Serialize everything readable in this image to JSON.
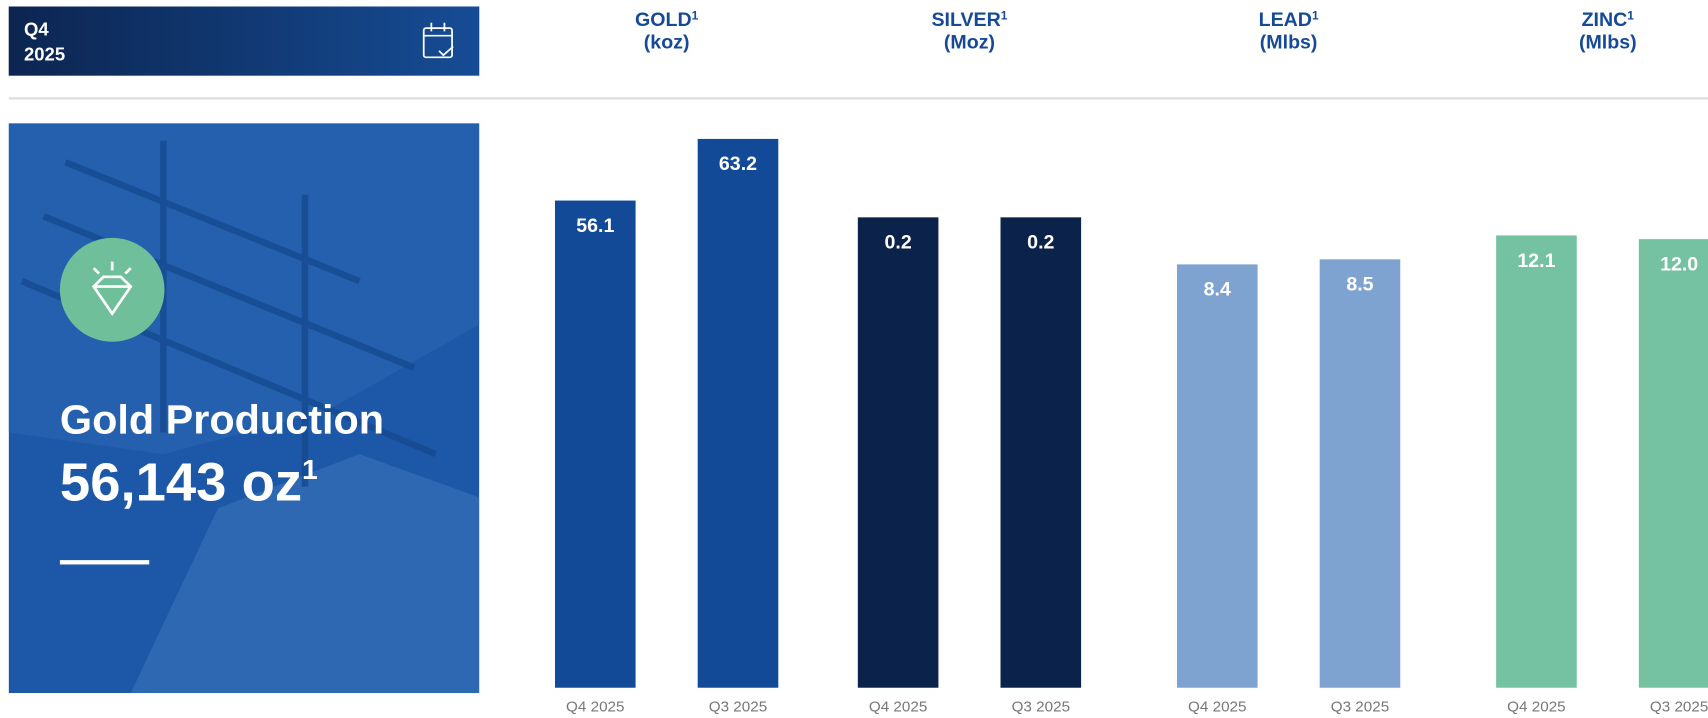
{
  "header": {
    "period": "Q4",
    "year": "2025"
  },
  "panel": {
    "title": "Gold Production",
    "value": "56,143 oz",
    "footnote_mark": "1"
  },
  "chart_data": [
    {
      "type": "bar",
      "title": "GOLD",
      "footnote_mark": "1",
      "subtitle": "(koz)",
      "categories": [
        "Q4 2025",
        "Q3 2025"
      ],
      "values": [
        56.1,
        63.2
      ],
      "color": "#134a97",
      "ylim": [
        0,
        65
      ]
    },
    {
      "type": "bar",
      "title": "SILVER",
      "footnote_mark": "1",
      "subtitle": "(Moz)",
      "categories": [
        "Q4 2025",
        "Q3 2025"
      ],
      "values": [
        0.2,
        0.2
      ],
      "color": "#0b224b",
      "ylim": [
        0,
        0.24
      ]
    },
    {
      "type": "bar",
      "title": "LEAD",
      "footnote_mark": "1",
      "subtitle": "(Mlbs)",
      "categories": [
        "Q4 2025",
        "Q3 2025"
      ],
      "values": [
        8.4,
        8.5
      ],
      "color": "#7fa3d0",
      "ylim": [
        0,
        11.2
      ]
    },
    {
      "type": "bar",
      "title": "ZINC",
      "footnote_mark": "1",
      "subtitle": "(Mlbs)",
      "categories": [
        "Q4 2025",
        "Q3 2025"
      ],
      "values": [
        12.1,
        12.0
      ],
      "value_labels": [
        "12.1",
        "12.0"
      ],
      "color": "#74c2a2",
      "ylim": [
        0,
        15.1
      ]
    }
  ]
}
